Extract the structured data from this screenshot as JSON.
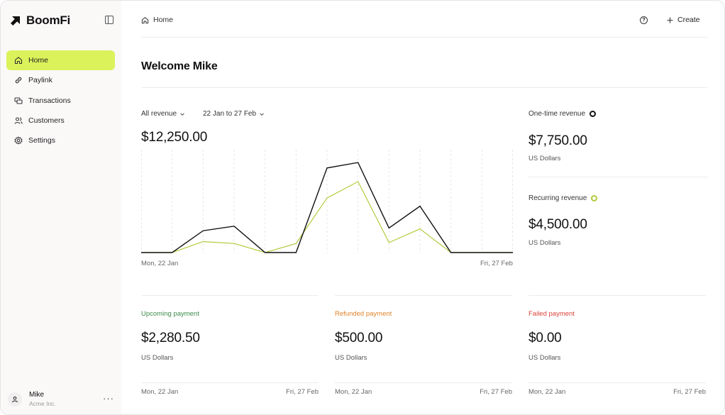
{
  "app": {
    "name": "BoomFi"
  },
  "sidebar": {
    "items": [
      {
        "label": "Home",
        "icon": "home-icon",
        "active": true
      },
      {
        "label": "Paylink",
        "icon": "link-icon"
      },
      {
        "label": "Transactions",
        "icon": "transactions-icon"
      },
      {
        "label": "Customers",
        "icon": "users-icon"
      },
      {
        "label": "Settings",
        "icon": "gear-icon"
      }
    ],
    "user": {
      "name": "Mike",
      "org": "Acme Inc.",
      "more": "···"
    }
  },
  "header": {
    "breadcrumb": "Home",
    "create_label": "Create",
    "help_icon": "help-icon"
  },
  "welcome": "Welcome Mike",
  "revenue": {
    "filter_label": "All revenue",
    "date_range": "22 Jan to 27 Feb",
    "total": "$12,250.00",
    "x_start": "Mon, 22 Jan",
    "x_end": "Fri, 27 Feb"
  },
  "side_stats": {
    "one_time": {
      "label": "One-time revenue",
      "value": "$7,750.00",
      "unit": "US Dollars",
      "color": "#111111"
    },
    "recurring": {
      "label": "Recurring revenue",
      "value": "$4,500.00",
      "unit": "US Dollars",
      "color": "#b5c93a"
    }
  },
  "cards": [
    {
      "title": "Upcoming payment",
      "color": "#3d8b4a",
      "value": "$2,280.50",
      "unit": "US Dollars",
      "from": "Mon, 22 Jan",
      "to": "Fri, 27 Feb"
    },
    {
      "title": "Refunded payment",
      "color": "#e0832b",
      "value": "$500.00",
      "unit": "US Dollars",
      "from": "Mon, 22 Jan",
      "to": "Fri, 27 Feb"
    },
    {
      "title": "Failed payment",
      "color": "#d9433a",
      "value": "$0.00",
      "unit": "US Dollars",
      "from": "Mon, 22 Jan",
      "to": "Fri, 27 Feb"
    }
  ],
  "chart_data": {
    "type": "line",
    "x": [
      0,
      1,
      2,
      3,
      4,
      5,
      6,
      7,
      8,
      9,
      10,
      11,
      12
    ],
    "series": [
      {
        "color": "#111111",
        "values": [
          0,
          0,
          24,
          29,
          0,
          0,
          93,
          99,
          27,
          51,
          0,
          0,
          0
        ]
      },
      {
        "color": "#b5c93a",
        "values": [
          0,
          0,
          12,
          10,
          0,
          10,
          60,
          78,
          11,
          26,
          0,
          0,
          0
        ]
      }
    ],
    "ylim": [
      0,
      110
    ],
    "grid": "vertical-dashed"
  }
}
